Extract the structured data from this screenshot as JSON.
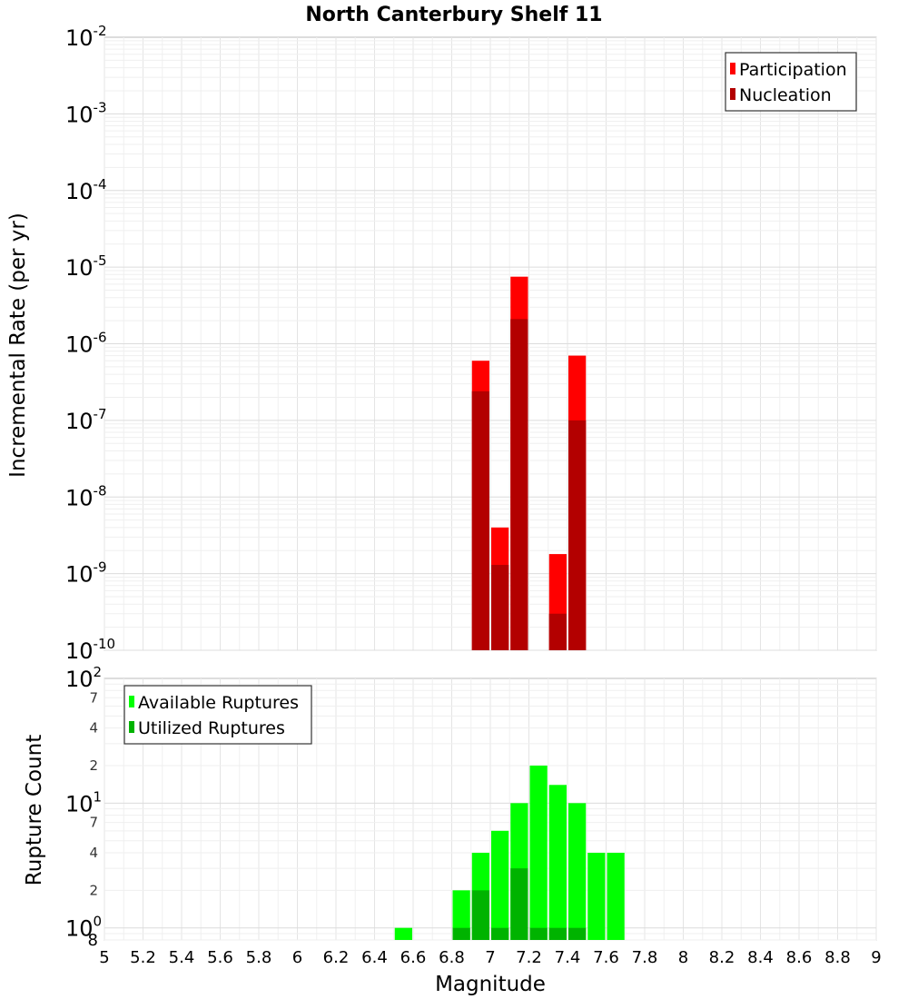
{
  "chart_data": [
    {
      "type": "bar",
      "title": "North Canterbury Shelf 11",
      "xlabel": "Magnitude",
      "ylabel": "Incremental Rate (per yr)",
      "yscale": "log",
      "ylim": [
        1e-10,
        0.01
      ],
      "xlim": [
        5,
        9
      ],
      "bin_width": 0.1,
      "x_ticks": [
        "5",
        "5.2",
        "5.4",
        "5.6",
        "5.8",
        "6",
        "6.2",
        "6.4",
        "6.6",
        "6.8",
        "7",
        "7.2",
        "7.4",
        "7.6",
        "7.8",
        "8",
        "8.2",
        "8.4",
        "8.6",
        "8.8",
        "9"
      ],
      "y_ticks": [
        {
          "base": "10",
          "exp": "-2"
        },
        {
          "base": "10",
          "exp": "-3"
        },
        {
          "base": "10",
          "exp": "-4"
        },
        {
          "base": "10",
          "exp": "-5"
        },
        {
          "base": "10",
          "exp": "-6"
        },
        {
          "base": "10",
          "exp": "-7"
        },
        {
          "base": "10",
          "exp": "-8"
        },
        {
          "base": "10",
          "exp": "-9"
        },
        {
          "base": "10",
          "exp": "-10"
        }
      ],
      "legend_position": "top-right",
      "legend_swatch_color": "#ff0000",
      "series": [
        {
          "name": "Participation",
          "color": "#ff0000",
          "x": [
            6.95,
            7.05,
            7.15,
            7.35,
            7.45
          ],
          "values": [
            6e-07,
            4e-09,
            7.5e-06,
            1.8e-09,
            7e-07
          ]
        },
        {
          "name": "Nucleation",
          "color": "#b30000",
          "x": [
            6.95,
            7.05,
            7.15,
            7.35,
            7.45
          ],
          "values": [
            2.4e-07,
            1.3e-09,
            2.1e-06,
            3e-10,
            1e-07
          ]
        }
      ]
    },
    {
      "type": "bar",
      "xlabel": "Magnitude",
      "ylabel": "Rupture Count",
      "yscale": "log",
      "ylim": [
        0.8,
        100
      ],
      "xlim": [
        5,
        9
      ],
      "bin_width": 0.1,
      "y_major_ticks": [
        {
          "base": "10",
          "exp": "2",
          "value": 100
        },
        {
          "base": "10",
          "exp": "1",
          "value": 10
        },
        {
          "base": "10",
          "exp": "0",
          "value": 1
        }
      ],
      "y_minor_ticks": [
        {
          "label": "7",
          "value": 70
        },
        {
          "label": "4",
          "value": 40
        },
        {
          "label": "2",
          "value": 20
        },
        {
          "label": "7",
          "value": 7
        },
        {
          "label": "4",
          "value": 4
        },
        {
          "label": "2",
          "value": 2
        },
        {
          "label": "8",
          "value": 0.8
        }
      ],
      "legend_position": "top-left",
      "series": [
        {
          "name": "Available Ruptures",
          "color": "#00ff00",
          "x": [
            6.55,
            6.85,
            6.95,
            7.05,
            7.15,
            7.25,
            7.35,
            7.45,
            7.55,
            7.65
          ],
          "values": [
            1,
            2,
            4,
            6,
            10,
            20,
            14,
            10,
            4,
            4
          ]
        },
        {
          "name": "Utilized Ruptures",
          "color": "#00b300",
          "x": [
            6.85,
            6.95,
            7.05,
            7.15,
            7.25,
            7.35,
            7.45
          ],
          "values": [
            1,
            2,
            1,
            3,
            1,
            1,
            1
          ]
        }
      ]
    }
  ]
}
